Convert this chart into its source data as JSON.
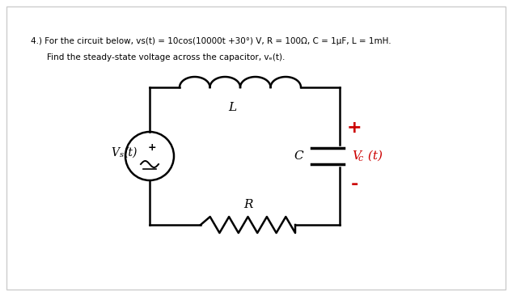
{
  "title_line1": "4.) For the circuit below, vs(t) = 10cos(10000t +30°) V, R = 100Ω, C = 1μF, L = 1mH.",
  "title_line2": "Find the steady-state voltage across the capacitor, vₑ(t).",
  "bg_color": "#f0f0f0",
  "inner_bg": "#ffffff",
  "text_color": "#000000",
  "red_color": "#cc0000",
  "circuit": {
    "vs_label": "Vs(t)",
    "L_label": "L",
    "C_label": "C",
    "R_label": "R",
    "Vc_label": "Vc(t)",
    "plus_label": "+",
    "minus_label": "-"
  }
}
